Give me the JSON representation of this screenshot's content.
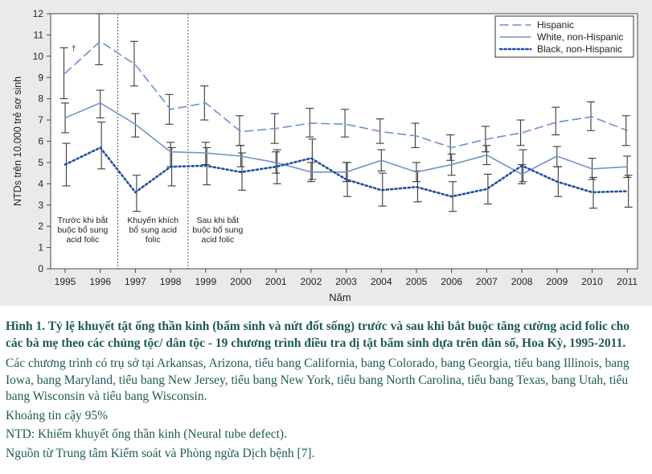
{
  "chart_data": {
    "type": "line",
    "ylabel": "NTDs trên 10.000 trẻ sơ sinh",
    "xlabel": "Năm",
    "ylim": [
      0,
      12
    ],
    "y_ticks": [
      "0",
      "1",
      "2",
      "3",
      "4",
      "5",
      "6",
      "7",
      "8",
      "9",
      "10",
      "11",
      "12"
    ],
    "x": [
      "1995",
      "1996",
      "1997",
      "1998",
      "1999",
      "2000",
      "2001",
      "2002",
      "2003",
      "2004",
      "2005",
      "2006",
      "2007",
      "2008",
      "2009",
      "2010",
      "2011"
    ],
    "grid": false,
    "legend_position": "top-right",
    "series": [
      {
        "name": "Hispanic",
        "color": "#6e8fd2",
        "style": "dashed",
        "values": [
          9.2,
          10.7,
          9.6,
          7.5,
          7.8,
          6.45,
          6.6,
          6.85,
          6.8,
          6.45,
          6.25,
          5.7,
          6.1,
          6.4,
          6.9,
          7.15,
          6.5
        ],
        "lower": [
          8.0,
          9.6,
          8.6,
          6.8,
          7.0,
          5.8,
          5.9,
          6.2,
          6.2,
          5.9,
          5.7,
          5.1,
          5.5,
          5.8,
          6.3,
          6.5,
          5.8
        ],
        "upper": [
          10.4,
          12.0,
          10.7,
          8.2,
          8.6,
          7.2,
          7.3,
          7.55,
          7.5,
          7.05,
          6.85,
          6.3,
          6.7,
          7.0,
          7.6,
          7.85,
          7.2
        ]
      },
      {
        "name": "White, non-Hispanic",
        "color": "#6f93cc",
        "style": "solid",
        "values": [
          7.1,
          7.8,
          6.8,
          5.5,
          5.45,
          5.3,
          5.0,
          4.55,
          4.55,
          5.1,
          4.55,
          4.9,
          5.35,
          4.45,
          5.3,
          4.7,
          4.8
        ],
        "lower": [
          6.4,
          7.1,
          6.2,
          4.8,
          4.9,
          4.8,
          4.5,
          4.1,
          4.1,
          4.6,
          4.1,
          4.4,
          4.9,
          4.0,
          4.8,
          4.2,
          4.3
        ],
        "upper": [
          7.8,
          8.4,
          7.3,
          5.95,
          5.95,
          5.8,
          5.5,
          5.0,
          5.0,
          5.6,
          5.0,
          5.4,
          5.8,
          4.9,
          5.75,
          5.2,
          5.3
        ]
      },
      {
        "name": "Black, non-Hispanic",
        "color": "#1f4fa6",
        "style": "dotted",
        "values": [
          4.9,
          5.7,
          3.6,
          4.8,
          4.85,
          4.55,
          4.8,
          5.2,
          4.2,
          3.7,
          3.85,
          3.4,
          3.75,
          4.85,
          4.1,
          3.6,
          3.65
        ],
        "lower": [
          3.9,
          4.7,
          2.7,
          3.9,
          3.95,
          3.7,
          4.0,
          4.2,
          3.4,
          2.95,
          3.15,
          2.7,
          3.05,
          4.1,
          3.4,
          2.85,
          2.9
        ],
        "upper": [
          5.9,
          6.9,
          4.4,
          5.7,
          5.7,
          5.45,
          5.6,
          6.1,
          5.0,
          4.5,
          4.6,
          4.1,
          4.45,
          5.6,
          4.8,
          4.3,
          4.4
        ]
      }
    ],
    "period_dividers_after_year_index": [
      1,
      3
    ],
    "annotations": [
      {
        "lines": [
          "Trước khi bắt",
          "buộc bổ sung",
          "acid folic"
        ],
        "year_index": 0.5
      },
      {
        "lines": [
          "Khuyến khích",
          "bổ sung acid",
          "folic"
        ],
        "year_index": 2.5
      },
      {
        "lines": [
          "Sau khi bắt",
          "buộc bổ sung",
          "acid folic"
        ],
        "year_index": 4.5
      }
    ],
    "marker_note": "†"
  },
  "caption": {
    "title": "Hình 1. Tỷ lệ khuyết tật ống thần kinh (bẩm sinh và nứt đốt sống) trước và sau khi bắt buộc tăng cường acid folic cho các bà mẹ theo các chủng tộc/ dân tộc - 19 chương trình điều tra dị tật bẩm sinh dựa trên dân số, Hoa Kỳ, 1995-2011.",
    "line1": "Các chương trình có trụ sở tại Arkansas, Arizona, tiểu bang California, bang Colorado, bang Georgia, tiểu bang Illinois, bang Iowa, bang Maryland, tiểu bang New Jersey, tiểu bang New York, tiểu bang North Carolina, tiểu bang Texas, bang Utah, tiểu bang Wisconsin và tiểu bang Wisconsin.",
    "line2": "Khoảng tin cậy 95%",
    "line3": "NTD: Khiếm khuyết ống thần kinh (Neural tube defect).",
    "line4": "Nguồn từ Trung tâm Kiểm soát và Phòng ngừa Dịch bệnh [7]."
  }
}
